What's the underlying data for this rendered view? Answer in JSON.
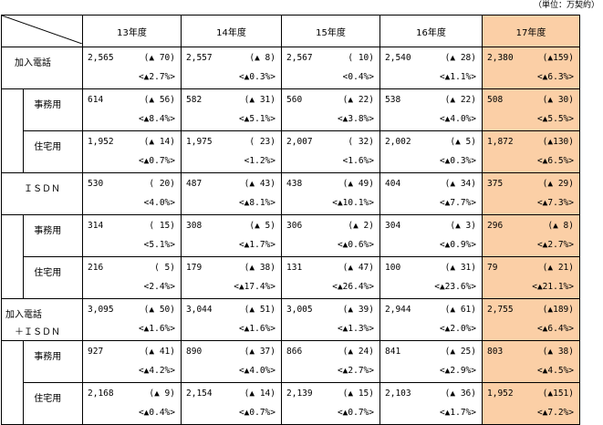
{
  "unit_note": "（単位：万契約）",
  "years": [
    "13年度",
    "14年度",
    "15年度",
    "16年度",
    "17年度"
  ],
  "highlight_color": "#fbcfa6",
  "groups": [
    {
      "label": "加入電話",
      "label2": "",
      "total": [
        {
          "v": "2,565",
          "d": "(▲ 70)",
          "r": "<▲2.7%>"
        },
        {
          "v": "2,557",
          "d": "(▲ 8)",
          "r": "<▲0.3%>"
        },
        {
          "v": "2,567",
          "d": "( 10)",
          "r": "<0.4%>"
        },
        {
          "v": "2,540",
          "d": "(▲ 28)",
          "r": "<▲1.1%>"
        },
        {
          "v": "2,380",
          "d": "(▲159)",
          "r": "<▲6.3%>"
        }
      ],
      "subs": [
        {
          "label": "事務用",
          "cells": [
            {
              "v": "614",
              "d": "(▲ 56)",
              "r": "<▲8.4%>"
            },
            {
              "v": "582",
              "d": "(▲ 31)",
              "r": "<▲5.1%>"
            },
            {
              "v": "560",
              "d": "(▲ 22)",
              "r": "<▲3.8%>"
            },
            {
              "v": "538",
              "d": "(▲ 22)",
              "r": "<▲4.0%>"
            },
            {
              "v": "508",
              "d": "(▲ 30)",
              "r": "<▲5.5%>"
            }
          ]
        },
        {
          "label": "住宅用",
          "cells": [
            {
              "v": "1,952",
              "d": "(▲ 14)",
              "r": "<▲0.7%>"
            },
            {
              "v": "1,975",
              "d": "( 23)",
              "r": "<1.2%>"
            },
            {
              "v": "2,007",
              "d": "( 32)",
              "r": "<1.6%>"
            },
            {
              "v": "2,002",
              "d": "(▲ 5)",
              "r": "<▲0.3%>"
            },
            {
              "v": "1,872",
              "d": "(▲130)",
              "r": "<▲6.5%>"
            }
          ]
        }
      ]
    },
    {
      "label": "ＩＳＤＮ",
      "label2": "",
      "total": [
        {
          "v": "530",
          "d": "( 20)",
          "r": "<4.0%>"
        },
        {
          "v": "487",
          "d": "(▲ 43)",
          "r": "<▲8.1%>"
        },
        {
          "v": "438",
          "d": "(▲ 49)",
          "r": "<▲10.1%>"
        },
        {
          "v": "404",
          "d": "(▲ 34)",
          "r": "<▲7.7%>"
        },
        {
          "v": "375",
          "d": "(▲ 29)",
          "r": "<▲7.3%>"
        }
      ],
      "subs": [
        {
          "label": "事務用",
          "cells": [
            {
              "v": "314",
              "d": "( 15)",
              "r": "<5.1%>"
            },
            {
              "v": "308",
              "d": "(▲ 5)",
              "r": "<▲1.7%>"
            },
            {
              "v": "306",
              "d": "(▲ 2)",
              "r": "<▲0.6%>"
            },
            {
              "v": "304",
              "d": "(▲ 3)",
              "r": "<▲0.9%>"
            },
            {
              "v": "296",
              "d": "(▲ 8)",
              "r": "<▲2.7%>"
            }
          ]
        },
        {
          "label": "住宅用",
          "cells": [
            {
              "v": "216",
              "d": "( 5)",
              "r": "<2.4%>"
            },
            {
              "v": "179",
              "d": "(▲ 38)",
              "r": "<▲17.4%>"
            },
            {
              "v": "131",
              "d": "(▲ 47)",
              "r": "<▲26.4%>"
            },
            {
              "v": "100",
              "d": "(▲ 31)",
              "r": "<▲23.6%>"
            },
            {
              "v": "79",
              "d": "(▲ 21)",
              "r": "<▲21.1%>"
            }
          ]
        }
      ]
    },
    {
      "label": "加入電話",
      "label2": "＋ＩＳＤＮ",
      "total": [
        {
          "v": "3,095",
          "d": "(▲ 50)",
          "r": "<▲1.6%>"
        },
        {
          "v": "3,044",
          "d": "(▲ 51)",
          "r": "<▲1.6%>"
        },
        {
          "v": "3,005",
          "d": "(▲ 39)",
          "r": "<▲1.3%>"
        },
        {
          "v": "2,944",
          "d": "(▲ 61)",
          "r": "<▲2.0%>"
        },
        {
          "v": "2,755",
          "d": "(▲189)",
          "r": "<▲6.4%>"
        }
      ],
      "subs": [
        {
          "label": "事務用",
          "cells": [
            {
              "v": "927",
              "d": "(▲ 41)",
              "r": "<▲4.2%>"
            },
            {
              "v": "890",
              "d": "(▲ 37)",
              "r": "<▲4.0%>"
            },
            {
              "v": "866",
              "d": "(▲ 24)",
              "r": "<▲2.7%>"
            },
            {
              "v": "841",
              "d": "(▲ 25)",
              "r": "<▲2.9%>"
            },
            {
              "v": "803",
              "d": "(▲ 38)",
              "r": "<▲4.5%>"
            }
          ]
        },
        {
          "label": "住宅用",
          "cells": [
            {
              "v": "2,168",
              "d": "(▲ 9)",
              "r": "<▲0.4%>"
            },
            {
              "v": "2,154",
              "d": "(▲ 14)",
              "r": "<▲0.7%>"
            },
            {
              "v": "2,139",
              "d": "(▲ 15)",
              "r": "<▲0.7%>"
            },
            {
              "v": "2,103",
              "d": "(▲ 36)",
              "r": "<▲1.7%>"
            },
            {
              "v": "1,952",
              "d": "(▲151)",
              "r": "<▲7.2%>"
            }
          ]
        }
      ]
    }
  ]
}
